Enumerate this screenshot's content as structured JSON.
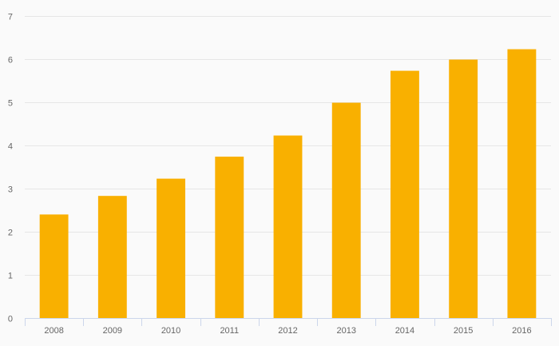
{
  "chart_data": {
    "type": "bar",
    "categories": [
      "2008",
      "2009",
      "2010",
      "2011",
      "2012",
      "2013",
      "2014",
      "2015",
      "2016"
    ],
    "values": [
      2.4,
      2.83,
      3.23,
      3.74,
      4.23,
      4.99,
      5.73,
      5.99,
      6.23
    ],
    "title": "",
    "xlabel": "",
    "ylabel": "",
    "ylim": [
      0,
      7
    ],
    "yticks": [
      "0",
      "1",
      "2",
      "3",
      "4",
      "5",
      "6",
      "7"
    ],
    "grid": true,
    "bar_color": "#f9b000",
    "background": "#fafafa"
  }
}
